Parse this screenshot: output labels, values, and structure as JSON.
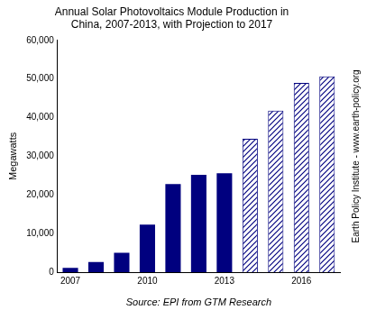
{
  "chart_data": {
    "type": "bar",
    "title": [
      "Annual Solar Photovoltaics Module Production in",
      "China, 2007-2013, with Projection to 2017"
    ],
    "y_label": "Megawatts",
    "categories": [
      "2007",
      null,
      null,
      "2010",
      null,
      null,
      "2013",
      null,
      null,
      "2016",
      null
    ],
    "series": [
      {
        "color": "#00007f",
        "values": [
          1100,
          2600,
          5000,
          12300,
          22800,
          25200,
          25600,
          null,
          null,
          null,
          null
        ]
      },
      {
        "color": "#00007f",
        "line_style": "hatched",
        "values": [
          null,
          null,
          null,
          null,
          null,
          null,
          null,
          34500,
          41800,
          49000,
          50700
        ]
      }
    ],
    "ylim": [
      0,
      60000
    ],
    "yticks": [
      0,
      {
        "value": 10000,
        "label": "10,000"
      },
      {
        "value": 20000,
        "label": "20,000"
      },
      {
        "value": 30000,
        "label": "30,000"
      },
      {
        "value": 40000,
        "label": "40,000"
      },
      {
        "value": 50000,
        "label": "50,000"
      },
      {
        "value": 60000,
        "label": "60,000"
      }
    ],
    "grid": false,
    "annotations": [
      {
        "text": "Source: EPI from GTM Research"
      },
      {
        "text": "Earth Policy Institute - www.earth-policy.org"
      }
    ]
  }
}
